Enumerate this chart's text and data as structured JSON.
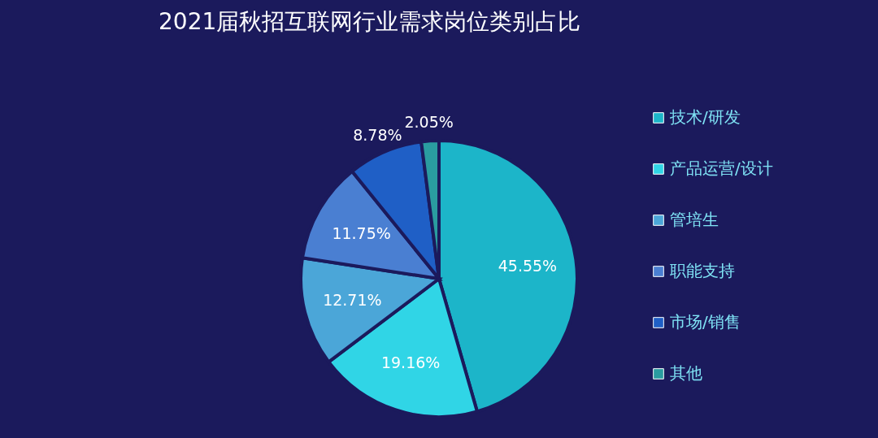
{
  "chart_data": {
    "type": "pie",
    "title": "2021届秋招互联网行业需求岗位类别占比",
    "categories": [
      "技术/研发",
      "产品运营/设计",
      "管培生",
      "职能支持",
      "市场/销售",
      "其他"
    ],
    "values": [
      45.55,
      19.16,
      12.71,
      11.75,
      8.78,
      2.05
    ],
    "value_labels": [
      "45.55%",
      "19.16%",
      "12.71%",
      "11.75%",
      "8.78%",
      "2.05%"
    ],
    "colors": [
      "#1cb5c9",
      "#30d5e6",
      "#4ba6d8",
      "#4a7fd2",
      "#1f5fc6",
      "#2a9ca0"
    ],
    "legend": "right"
  }
}
